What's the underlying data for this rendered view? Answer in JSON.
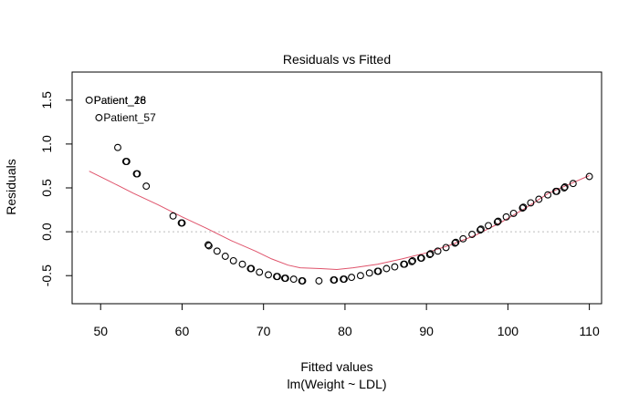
{
  "chart_data": {
    "type": "scatter",
    "title": "Residuals vs Fitted",
    "xlabel": "Fitted values",
    "sublabel": "lm(Weight ~ LDL)",
    "ylabel": "Residuals",
    "xlim": [
      46.5,
      111.5
    ],
    "ylim": [
      -0.82,
      1.82
    ],
    "xticks": [
      50,
      60,
      70,
      80,
      90,
      100,
      110
    ],
    "yticks": [
      -0.5,
      0.0,
      0.5,
      1.0,
      1.5
    ],
    "ytick_labels": [
      "-0.5",
      "0.0",
      "0.5",
      "1.0",
      "1.5"
    ],
    "reference_line_y": 0,
    "colors": {
      "points": "#000000",
      "smooth": "#df536b",
      "reference": "#bebebe"
    },
    "points": [
      [
        48.6,
        1.5
      ],
      [
        49.8,
        1.3
      ],
      [
        52.1,
        0.96
      ],
      [
        53.1,
        0.8
      ],
      [
        53.2,
        0.8
      ],
      [
        54.4,
        0.66
      ],
      [
        54.5,
        0.66
      ],
      [
        55.6,
        0.52
      ],
      [
        58.9,
        0.18
      ],
      [
        59.9,
        0.1
      ],
      [
        60.0,
        0.1
      ],
      [
        63.2,
        -0.15
      ],
      [
        63.3,
        -0.16
      ],
      [
        64.3,
        -0.22
      ],
      [
        65.3,
        -0.28
      ],
      [
        66.3,
        -0.33
      ],
      [
        67.4,
        -0.37
      ],
      [
        68.4,
        -0.42
      ],
      [
        68.5,
        -0.42
      ],
      [
        69.5,
        -0.46
      ],
      [
        70.6,
        -0.49
      ],
      [
        71.6,
        -0.51
      ],
      [
        71.7,
        -0.51
      ],
      [
        72.6,
        -0.53
      ],
      [
        72.7,
        -0.53
      ],
      [
        73.7,
        -0.54
      ],
      [
        74.7,
        -0.56
      ],
      [
        74.8,
        -0.56
      ],
      [
        76.8,
        -0.56
      ],
      [
        78.6,
        -0.55
      ],
      [
        78.7,
        -0.55
      ],
      [
        79.8,
        -0.54
      ],
      [
        79.9,
        -0.54
      ],
      [
        80.8,
        -0.52
      ],
      [
        81.9,
        -0.5
      ],
      [
        83.0,
        -0.47
      ],
      [
        84.0,
        -0.45
      ],
      [
        84.1,
        -0.45
      ],
      [
        85.1,
        -0.42
      ],
      [
        86.1,
        -0.4
      ],
      [
        87.2,
        -0.37
      ],
      [
        87.3,
        -0.37
      ],
      [
        88.2,
        -0.34
      ],
      [
        88.3,
        -0.33
      ],
      [
        89.3,
        -0.3
      ],
      [
        89.4,
        -0.3
      ],
      [
        90.4,
        -0.26
      ],
      [
        90.5,
        -0.25
      ],
      [
        91.4,
        -0.22
      ],
      [
        92.4,
        -0.18
      ],
      [
        93.5,
        -0.13
      ],
      [
        93.6,
        -0.12
      ],
      [
        94.5,
        -0.08
      ],
      [
        95.6,
        -0.03
      ],
      [
        96.6,
        0.02
      ],
      [
        96.7,
        0.03
      ],
      [
        97.6,
        0.07
      ],
      [
        98.7,
        0.11
      ],
      [
        98.8,
        0.12
      ],
      [
        99.8,
        0.17
      ],
      [
        100.7,
        0.21
      ],
      [
        101.8,
        0.27
      ],
      [
        101.9,
        0.28
      ],
      [
        102.8,
        0.33
      ],
      [
        103.8,
        0.37
      ],
      [
        104.9,
        0.42
      ],
      [
        105.9,
        0.46
      ],
      [
        106.0,
        0.46
      ],
      [
        106.9,
        0.5
      ],
      [
        107.0,
        0.51
      ],
      [
        108.0,
        0.55
      ],
      [
        110.0,
        0.63
      ]
    ],
    "smooth": [
      [
        48.6,
        0.69
      ],
      [
        51,
        0.58
      ],
      [
        54,
        0.44
      ],
      [
        57,
        0.31
      ],
      [
        60,
        0.17
      ],
      [
        63,
        0.04
      ],
      [
        66,
        -0.1
      ],
      [
        69,
        -0.22
      ],
      [
        71,
        -0.31
      ],
      [
        73,
        -0.38
      ],
      [
        74.5,
        -0.41
      ],
      [
        77,
        -0.42
      ],
      [
        79,
        -0.43
      ],
      [
        81,
        -0.41
      ],
      [
        84,
        -0.37
      ],
      [
        87,
        -0.31
      ],
      [
        90,
        -0.24
      ],
      [
        93,
        -0.15
      ],
      [
        96,
        -0.04
      ],
      [
        99,
        0.1
      ],
      [
        102,
        0.26
      ],
      [
        105,
        0.44
      ],
      [
        108,
        0.56
      ],
      [
        110,
        0.64
      ]
    ],
    "annotations": [
      {
        "label": "Patient_28",
        "x": 48.6,
        "y": 1.5
      },
      {
        "label": "Patient_16",
        "x": 48.6,
        "y": 1.5
      },
      {
        "label": "Patient_57",
        "x": 49.8,
        "y": 1.3
      }
    ]
  }
}
